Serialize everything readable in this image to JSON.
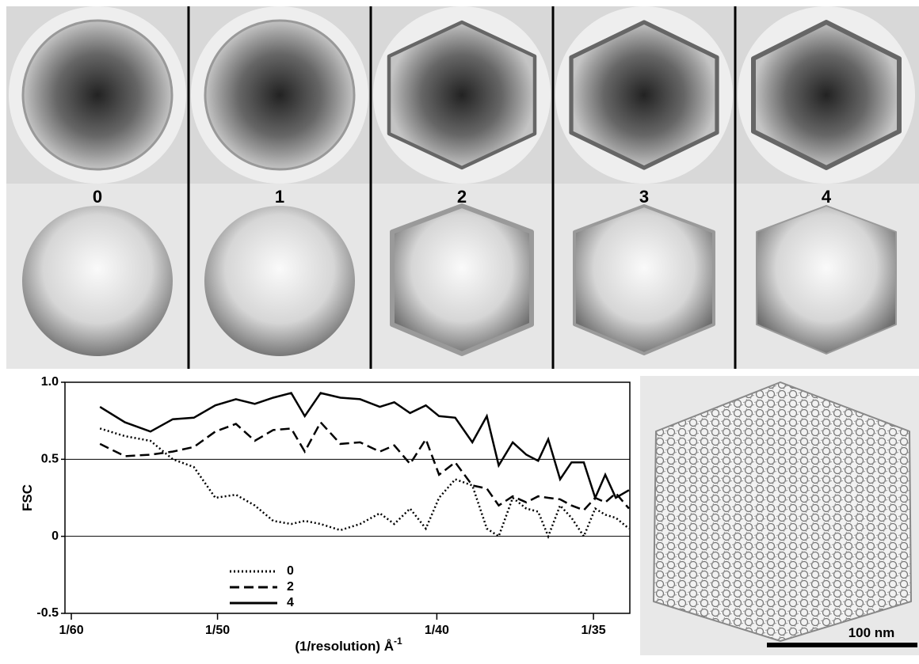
{
  "panels": {
    "labels": [
      "0",
      "1",
      "2",
      "3",
      "4"
    ],
    "scale_bar": "100 nm"
  },
  "chart_data": {
    "type": "line",
    "x_label": "(1/resolution) Å",
    "x_label_superscript": "-1",
    "y_label": "FSC",
    "x": [
      0.01732,
      0.01789,
      0.01847,
      0.01898,
      0.01946,
      0.01995,
      0.02042,
      0.02085,
      0.02127,
      0.02168,
      0.02199,
      0.02235,
      0.0228,
      0.02325,
      0.0237,
      0.02403,
      0.02439,
      0.02475,
      0.02505,
      0.02542,
      0.02581,
      0.02614,
      0.02641,
      0.02673,
      0.02704,
      0.02731,
      0.02754,
      0.02781,
      0.02807,
      0.02835,
      0.02861,
      0.02884,
      0.02908,
      0.02938
    ],
    "series": [
      {
        "name": "0",
        "color": "#000000",
        "dash": "dotted",
        "values": [
          0.7,
          0.65,
          0.62,
          0.5,
          0.45,
          0.25,
          0.27,
          0.2,
          0.1,
          0.08,
          0.1,
          0.08,
          0.04,
          0.08,
          0.15,
          0.08,
          0.18,
          0.05,
          0.25,
          0.37,
          0.33,
          0.05,
          0.0,
          0.25,
          0.18,
          0.16,
          0.0,
          0.2,
          0.12,
          0.0,
          0.18,
          0.14,
          0.12,
          0.05
        ]
      },
      {
        "name": "2",
        "color": "#000000",
        "dash": "dashed",
        "values": [
          0.6,
          0.52,
          0.53,
          0.55,
          0.58,
          0.68,
          0.73,
          0.62,
          0.69,
          0.7,
          0.55,
          0.74,
          0.6,
          0.61,
          0.55,
          0.59,
          0.47,
          0.63,
          0.4,
          0.48,
          0.33,
          0.31,
          0.2,
          0.26,
          0.22,
          0.26,
          0.25,
          0.24,
          0.2,
          0.17,
          0.25,
          0.22,
          0.28,
          0.18
        ]
      },
      {
        "name": "4",
        "color": "#000000",
        "dash": "solid",
        "values": [
          0.84,
          0.74,
          0.68,
          0.76,
          0.77,
          0.85,
          0.89,
          0.86,
          0.9,
          0.93,
          0.78,
          0.93,
          0.9,
          0.89,
          0.84,
          0.87,
          0.8,
          0.85,
          0.78,
          0.77,
          0.61,
          0.78,
          0.46,
          0.61,
          0.53,
          0.49,
          0.63,
          0.37,
          0.48,
          0.48,
          0.25,
          0.4,
          0.25,
          0.3
        ]
      }
    ],
    "xlim": [
      0.016522,
      0.0294
    ],
    "xticks": [
      {
        "value": 0.016667,
        "label": "1/60"
      },
      {
        "value": 0.02,
        "label": "1/50"
      },
      {
        "value": 0.025,
        "label": "1/40"
      },
      {
        "value": 0.028571,
        "label": "1/35"
      }
    ],
    "ylim": [
      -0.5,
      1.0
    ],
    "yticks": [
      -0.5,
      0,
      0.5,
      {
        "value": 1.0,
        "label": "1.0"
      }
    ],
    "grid": true,
    "legend": "lower left"
  }
}
